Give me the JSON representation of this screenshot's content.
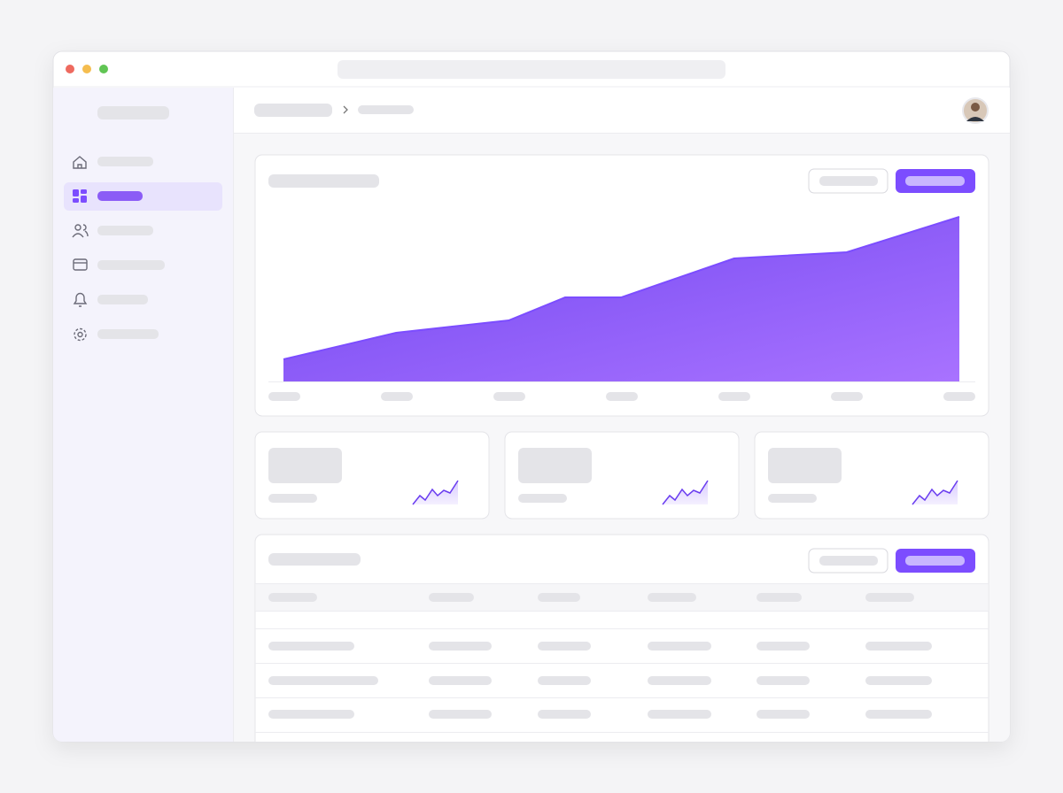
{
  "chart_data": {
    "type": "area",
    "color": "#7c4dff",
    "x": [
      0,
      2,
      4,
      5,
      6,
      8,
      10,
      12
    ],
    "values": [
      25,
      55,
      69,
      95,
      95,
      139,
      146,
      186
    ],
    "xlim": [
      0,
      12
    ],
    "ylim": [
      0,
      200
    ]
  }
}
